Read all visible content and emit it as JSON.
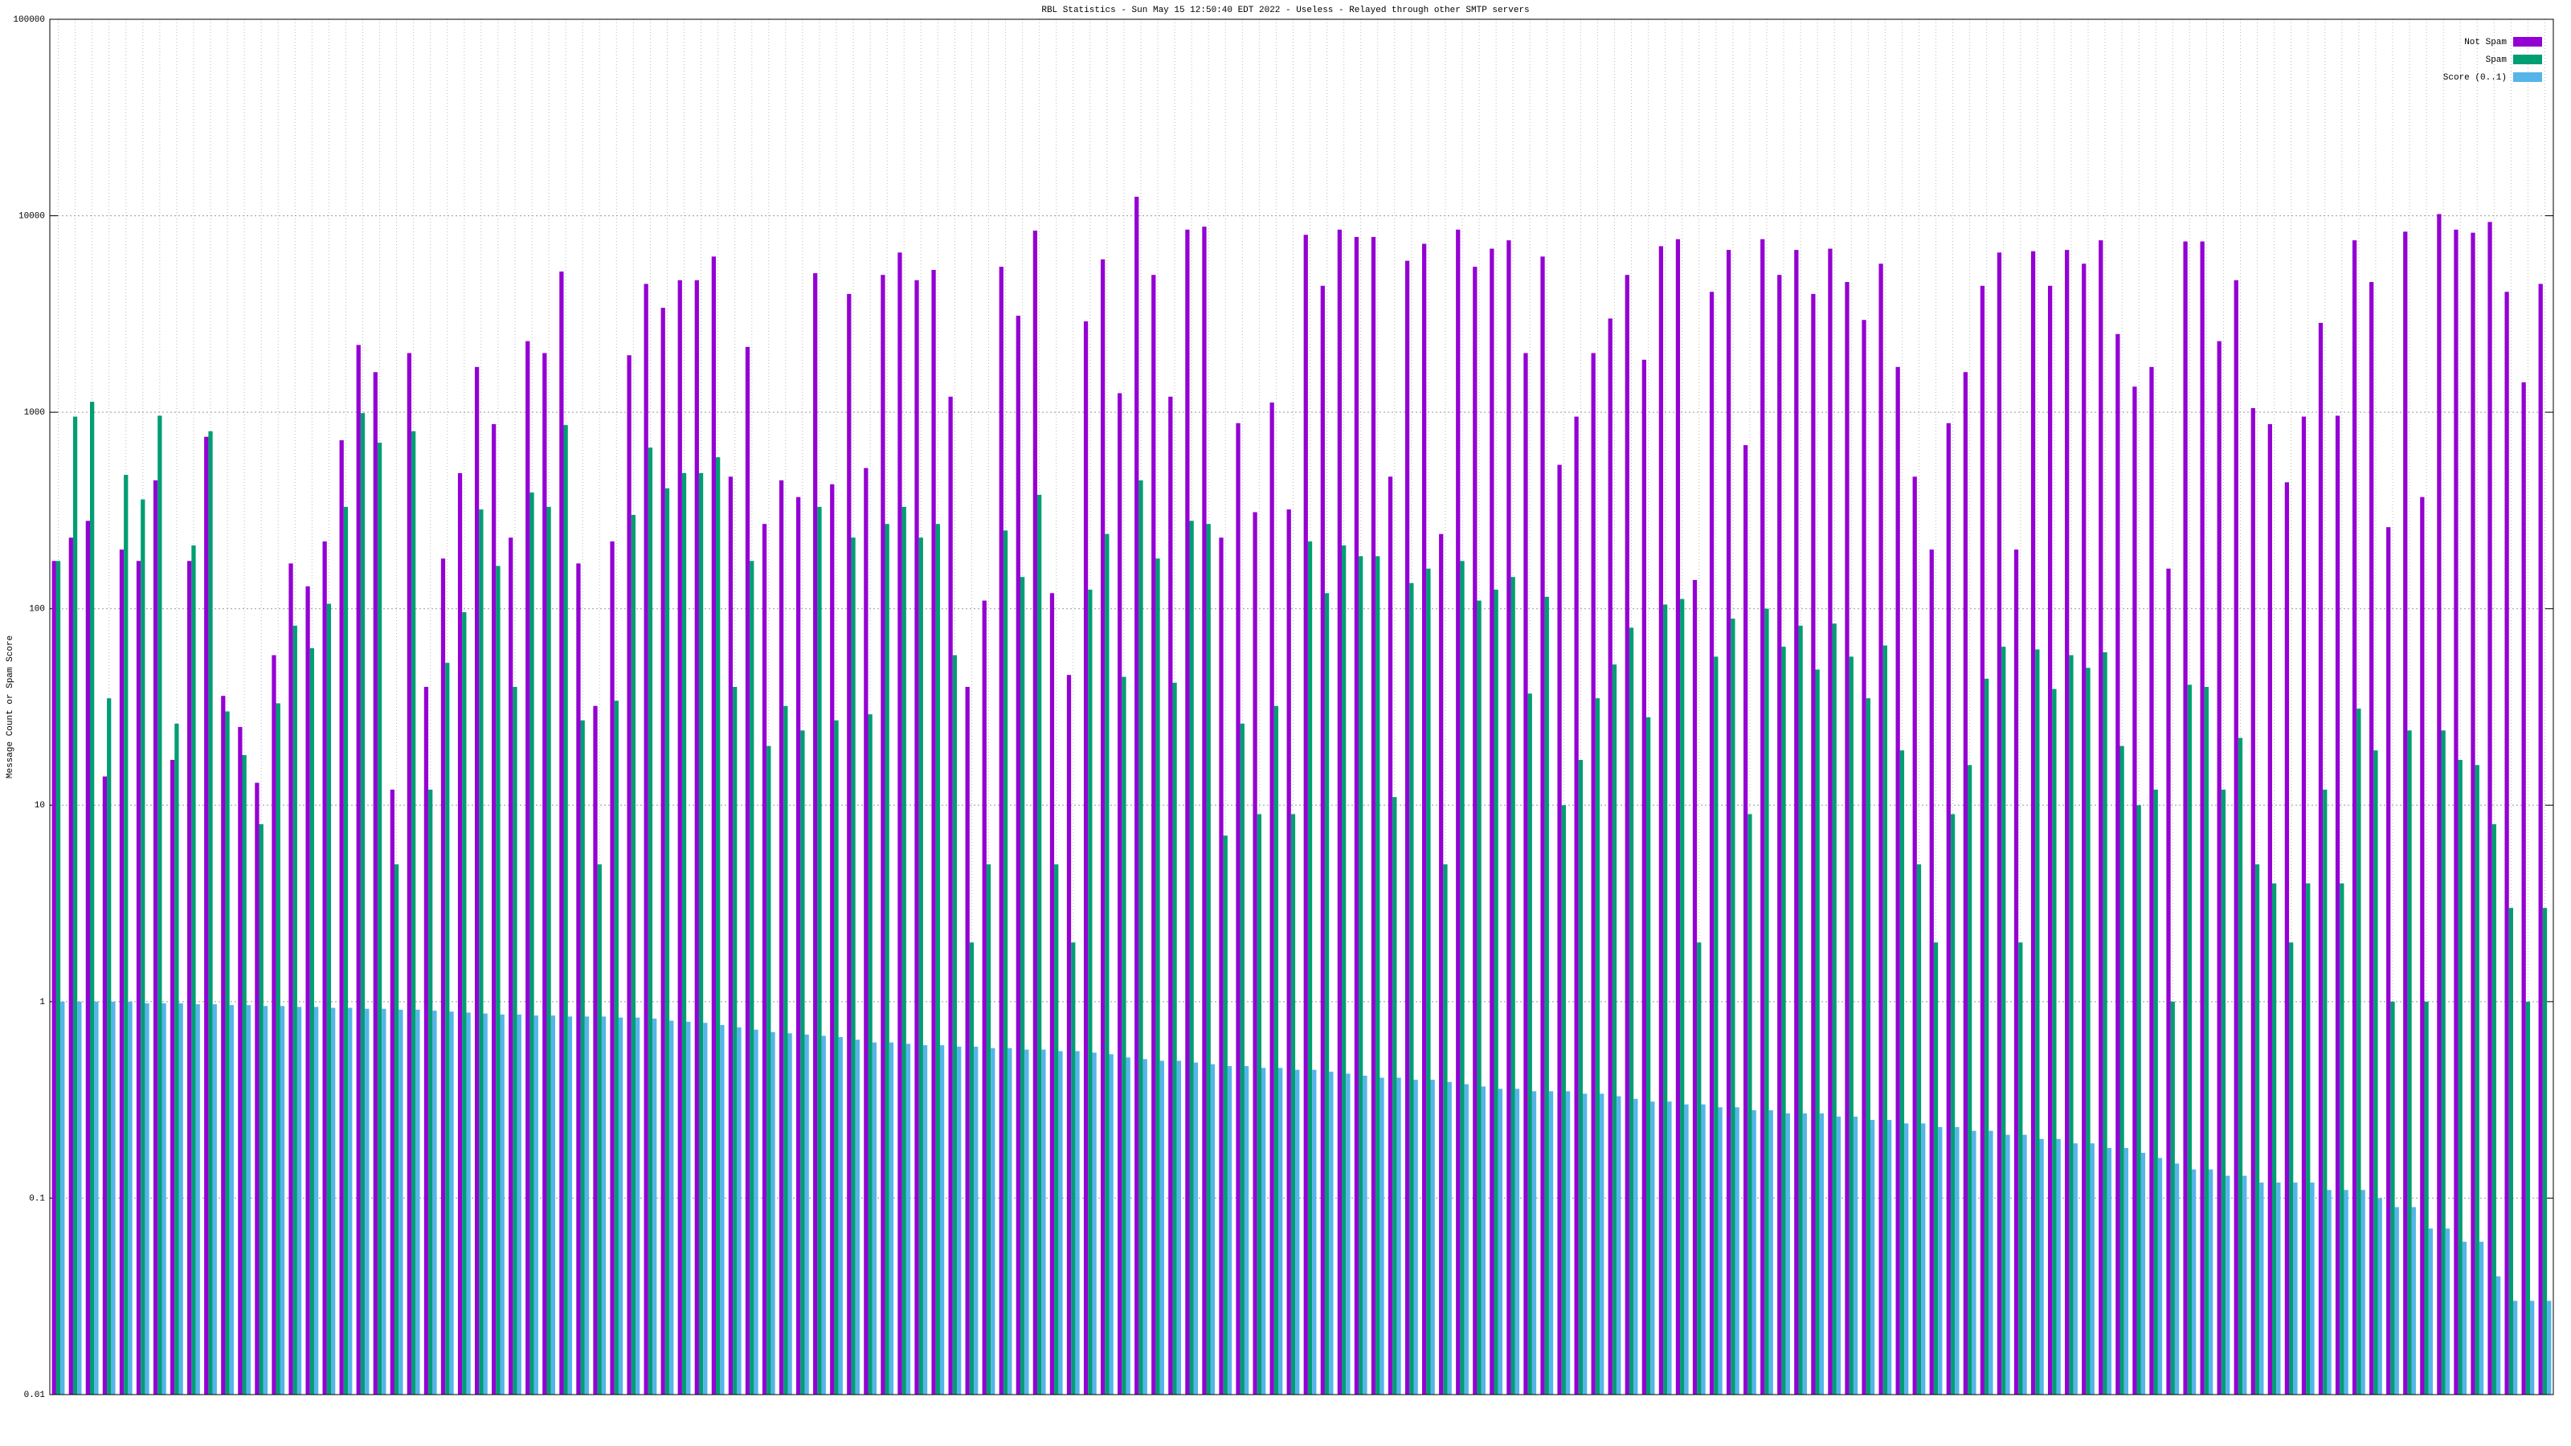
{
  "chart_data": {
    "type": "bar",
    "title": "RBL Statistics - Sun May 15 12:50:40 EDT 2022 - Useless - Relayed through other SMTP servers",
    "ylabel": "Message Count or Spam Score",
    "log_y": true,
    "grid": true,
    "legend": "top-right",
    "ylim": [
      0.01,
      100000
    ],
    "yticks": [
      0.01,
      0.1,
      1,
      10,
      100,
      1000,
      10000,
      100000
    ],
    "categories": [
      null,
      null,
      null,
      null,
      null,
      null,
      null,
      null,
      null,
      null,
      null,
      null,
      null,
      null,
      null,
      null,
      null,
      null,
      null,
      null,
      null,
      null,
      null,
      null,
      null,
      null,
      null,
      null,
      null,
      null,
      null,
      null,
      null,
      null,
      null,
      null,
      null,
      null,
      null,
      null,
      null,
      null,
      null,
      null,
      null,
      null,
      null,
      null,
      null,
      null,
      null,
      null,
      null,
      null,
      null,
      null,
      null,
      null,
      null,
      null,
      null,
      null,
      null,
      null,
      null,
      null,
      null,
      null,
      null,
      null,
      null,
      null,
      null,
      null,
      null,
      null,
      null,
      null,
      null,
      null,
      null,
      null,
      null,
      null,
      null,
      null,
      null,
      null,
      null,
      null,
      null,
      null,
      null,
      null,
      null,
      null,
      null,
      null,
      null,
      null,
      null,
      null,
      null,
      null,
      null,
      null,
      null,
      null,
      null,
      null,
      null,
      null,
      null,
      null,
      null,
      null,
      null,
      null,
      null,
      null,
      null,
      null,
      null,
      null,
      null,
      null,
      null,
      null,
      null,
      null,
      null,
      null,
      null,
      null,
      null,
      null,
      null,
      null,
      null,
      null,
      null,
      null,
      null,
      null,
      null,
      null,
      null,
      null
    ],
    "series": [
      {
        "name": "Not Spam",
        "color": "#9400d3",
        "values": [
          175,
          230,
          280,
          14,
          200,
          175,
          450,
          17,
          175,
          750,
          36,
          25,
          13,
          58,
          170,
          130,
          220,
          720,
          2200,
          1600,
          12,
          2000,
          40,
          180,
          490,
          1700,
          870,
          230,
          2300,
          2000,
          5200,
          170,
          32,
          220,
          1950,
          4500,
          3400,
          4700,
          4700,
          6200,
          470,
          2150,
          270,
          450,
          370,
          5100,
          430,
          4000,
          520,
          5000,
          6500,
          4700,
          5300,
          1200,
          40,
          110,
          5500,
          3100,
          8400,
          120,
          46,
          2900,
          6000,
          1250,
          12500,
          5000,
          1200,
          8500,
          8800,
          230,
          880,
          310,
          1120,
          320,
          8000,
          4400,
          8500,
          7800,
          7800,
          470,
          5900,
          7200,
          240,
          8500,
          5500,
          6800,
          7500,
          2000,
          6200,
          540,
          950,
          2000,
          3000,
          5000,
          1850,
          7000,
          7600,
          140,
          4100,
          6700,
          680,
          7600,
          5000,
          6700,
          4000,
          6800,
          4600,
          2950,
          5700,
          1700,
          470,
          200,
          880,
          1600,
          4400,
          6500,
          200,
          6600,
          4400,
          6700,
          5700,
          7500,
          2500,
          1350,
          1700,
          160,
          7400,
          7400,
          2300,
          4700,
          1050,
          870,
          440,
          950,
          2850,
          960,
          7500,
          4600,
          260,
          8300,
          370,
          10200,
          8500,
          8200,
          9300,
          4100,
          1420,
          4500
        ]
      },
      {
        "name": "Spam",
        "color": "#009e73",
        "values": [
          175,
          950,
          1130,
          35,
          480,
          360,
          960,
          26,
          210,
          800,
          30,
          18,
          8,
          33,
          82,
          63,
          106,
          330,
          990,
          700,
          5,
          800,
          12,
          53,
          96,
          320,
          165,
          40,
          390,
          330,
          860,
          27,
          5,
          34,
          300,
          660,
          410,
          490,
          490,
          590,
          40,
          175,
          20,
          32,
          24,
          330,
          27,
          230,
          29,
          270,
          330,
          230,
          270,
          58,
          2,
          5,
          250,
          145,
          380,
          5,
          2,
          125,
          240,
          45,
          450,
          180,
          42,
          280,
          270,
          7,
          26,
          9,
          32,
          9,
          220,
          120,
          210,
          185,
          185,
          11,
          135,
          160,
          5,
          175,
          110,
          125,
          145,
          37,
          115,
          10,
          17,
          35,
          52,
          80,
          28,
          105,
          112,
          2,
          57,
          89,
          9,
          100,
          64,
          82,
          49,
          84,
          57,
          35,
          65,
          19,
          5,
          2,
          9,
          16,
          44,
          64,
          2,
          62,
          39,
          58,
          50,
          60,
          20,
          10,
          12,
          1,
          41,
          40,
          12,
          22,
          5,
          4,
          2,
          4,
          12,
          4,
          31,
          19,
          1,
          24,
          1,
          24,
          17,
          16,
          8,
          3,
          1,
          3
        ]
      },
      {
        "name": "Score (0..1)",
        "color": "#56b4e9",
        "values": [
          1.0,
          1.0,
          1.0,
          1.0,
          1.0,
          0.98,
          0.98,
          0.98,
          0.97,
          0.97,
          0.96,
          0.96,
          0.95,
          0.95,
          0.94,
          0.94,
          0.93,
          0.93,
          0.92,
          0.92,
          0.91,
          0.91,
          0.9,
          0.89,
          0.88,
          0.87,
          0.86,
          0.86,
          0.85,
          0.85,
          0.84,
          0.84,
          0.84,
          0.83,
          0.83,
          0.82,
          0.8,
          0.79,
          0.78,
          0.76,
          0.74,
          0.72,
          0.7,
          0.69,
          0.68,
          0.67,
          0.66,
          0.64,
          0.62,
          0.62,
          0.61,
          0.6,
          0.6,
          0.59,
          0.59,
          0.58,
          0.58,
          0.57,
          0.57,
          0.56,
          0.56,
          0.55,
          0.54,
          0.52,
          0.51,
          0.5,
          0.5,
          0.49,
          0.48,
          0.47,
          0.47,
          0.46,
          0.46,
          0.45,
          0.45,
          0.44,
          0.43,
          0.42,
          0.41,
          0.41,
          0.4,
          0.4,
          0.39,
          0.38,
          0.37,
          0.36,
          0.36,
          0.35,
          0.35,
          0.35,
          0.34,
          0.34,
          0.33,
          0.32,
          0.31,
          0.31,
          0.3,
          0.3,
          0.29,
          0.29,
          0.28,
          0.28,
          0.27,
          0.27,
          0.27,
          0.26,
          0.26,
          0.25,
          0.25,
          0.24,
          0.24,
          0.23,
          0.23,
          0.22,
          0.22,
          0.21,
          0.21,
          0.2,
          0.2,
          0.19,
          0.19,
          0.18,
          0.18,
          0.17,
          0.16,
          0.15,
          0.14,
          0.14,
          0.13,
          0.13,
          0.12,
          0.12,
          0.12,
          0.12,
          0.11,
          0.11,
          0.11,
          0.1,
          0.09,
          0.09,
          0.07,
          0.07,
          0.06,
          0.06,
          0.04,
          0.03,
          0.03,
          0.03
        ]
      }
    ]
  }
}
